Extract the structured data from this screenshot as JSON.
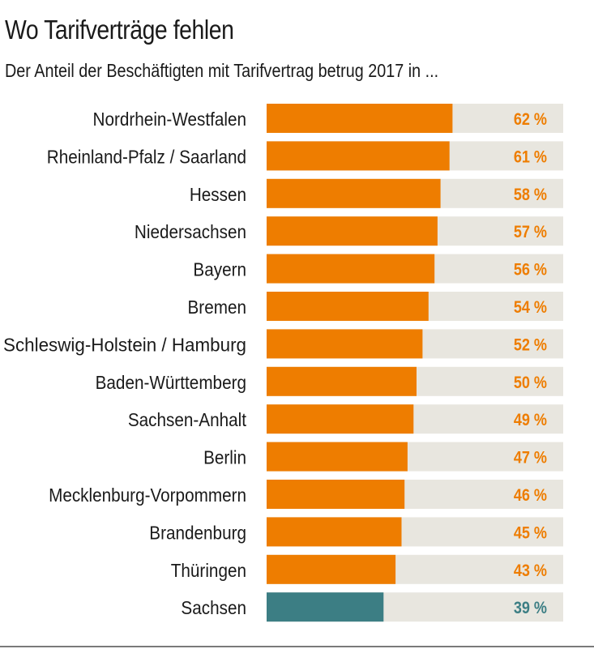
{
  "header": {
    "title": "Wo Tarifverträge fehlen",
    "subtitle": "Der Anteil der Beschäftigten mit Tarifvertrag betrug 2017 in ..."
  },
  "colors": {
    "bar": "#ee7d00",
    "highlight": "#3c7e84",
    "track": "#e8e6df",
    "label": "#1a1a1a"
  },
  "chart_data": {
    "type": "bar",
    "orientation": "horizontal",
    "title": "Wo Tarifverträge fehlen",
    "subtitle": "Der Anteil der Beschäftigten mit Tarifvertrag betrug 2017 in ...",
    "unit": "%",
    "xlim": [
      0,
      100
    ],
    "grid": false,
    "categories": [
      "Nordrhein-Westfalen",
      "Rheinland-Pfalz / Saarland",
      "Hessen",
      "Niedersachsen",
      "Bayern",
      "Bremen",
      "Schleswig-Holstein / Hamburg",
      "Baden-Württemberg",
      "Sachsen-Anhalt",
      "Berlin",
      "Mecklenburg-Vorpommern",
      "Brandenburg",
      "Thüringen",
      "Sachsen"
    ],
    "values": [
      62,
      61,
      58,
      57,
      56,
      54,
      52,
      50,
      49,
      47,
      46,
      45,
      43,
      39
    ],
    "value_labels": [
      "62 %",
      "61 %",
      "58 %",
      "57 %",
      "56 %",
      "54 %",
      "52 %",
      "50 %",
      "49 %",
      "47 %",
      "46 %",
      "45 %",
      "43 %",
      "39 %"
    ],
    "highlighted": [
      "Sachsen"
    ]
  }
}
